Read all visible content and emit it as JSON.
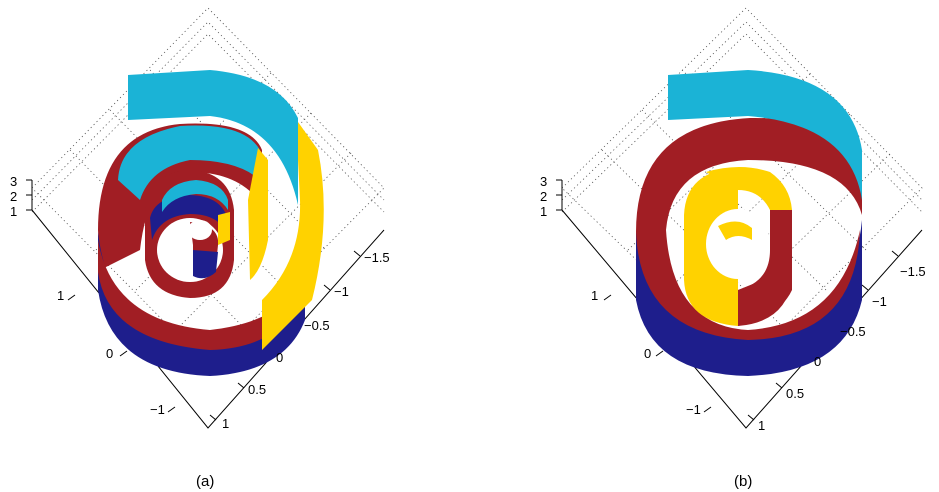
{
  "colors": {
    "cyan": "#1BB3D6",
    "red": "#A11E24",
    "navy": "#1E1E8C",
    "yellow": "#FFD200"
  },
  "panels": [
    {
      "caption": "(a)",
      "z_ticks": [
        "3",
        "2",
        "1"
      ],
      "left_ticks": [
        "1",
        "0",
        "−1"
      ],
      "right_ticks": [
        "−1.5",
        "−1",
        "−0.5",
        "0",
        "0.5",
        "1"
      ]
    },
    {
      "caption": "(b)",
      "z_ticks": [
        "3",
        "2",
        "1"
      ],
      "left_ticks": [
        "1",
        "0",
        "−1"
      ],
      "right_ticks": [
        "−1.5",
        "−1",
        "−0.5",
        "0",
        "0.5",
        "1"
      ]
    }
  ]
}
